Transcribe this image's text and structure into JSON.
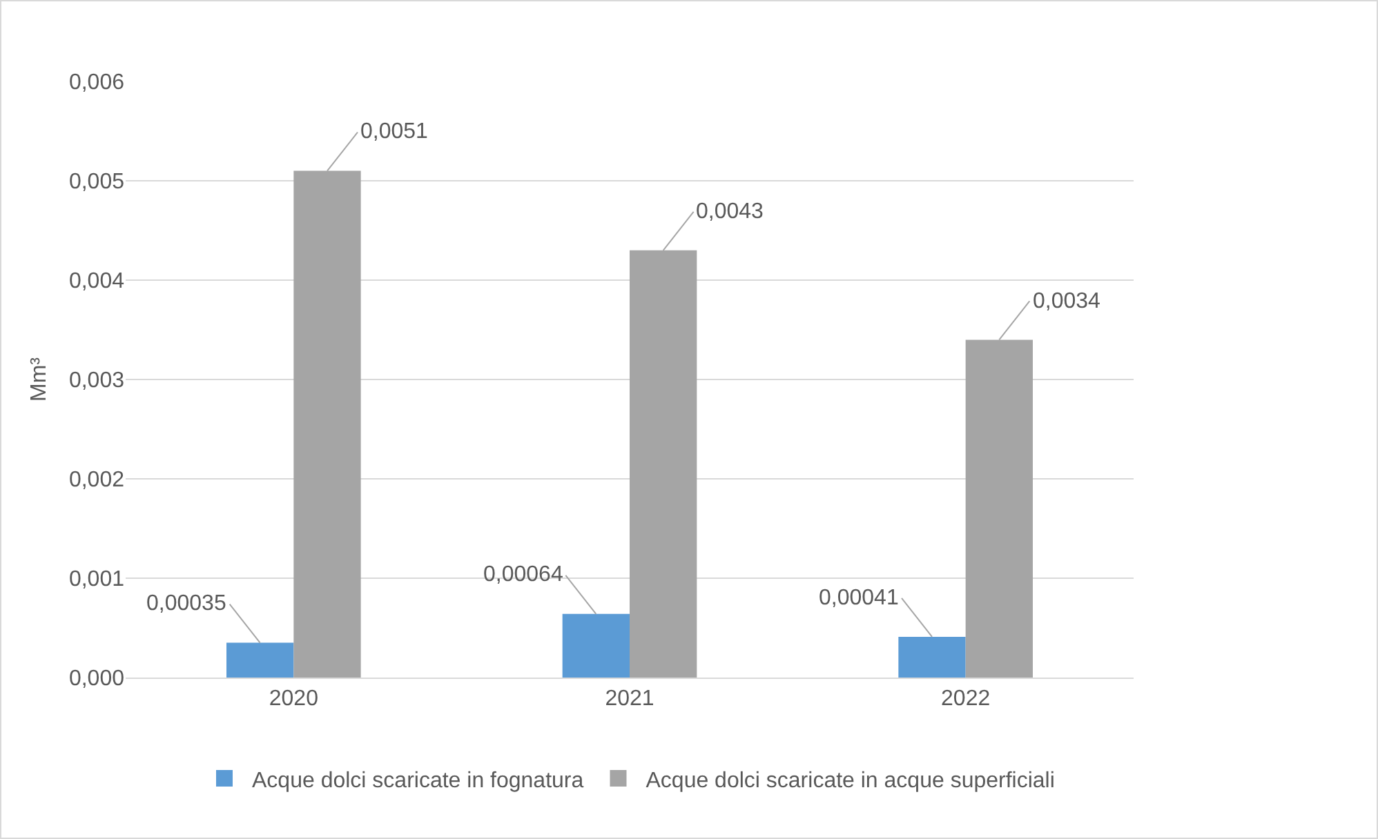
{
  "chart_data": {
    "type": "bar",
    "ylabel": "Mm³",
    "categories": [
      "2020",
      "2021",
      "2022"
    ],
    "series": [
      {
        "name": "Acque dolci scaricate in fognatura",
        "color": "#5b9bd5",
        "values": [
          0.00035,
          0.00064,
          0.00041
        ],
        "value_labels": [
          "0,00035",
          "0,00064",
          "0,00041"
        ]
      },
      {
        "name": "Acque dolci scaricate in acque superficiali",
        "color": "#a5a5a5",
        "values": [
          0.0051,
          0.0043,
          0.0034
        ],
        "value_labels": [
          "0,0051",
          "0,0043",
          "0,0034"
        ]
      }
    ],
    "ylim": [
      0,
      0.006
    ],
    "yticks": [
      {
        "value": 0,
        "label": "0,000"
      },
      {
        "value": 0.001,
        "label": "0,001"
      },
      {
        "value": 0.002,
        "label": "0,002"
      },
      {
        "value": 0.003,
        "label": "0,003"
      },
      {
        "value": 0.004,
        "label": "0,004"
      },
      {
        "value": 0.005,
        "label": "0,005"
      },
      {
        "value": 0.006,
        "label": "0,006"
      }
    ],
    "grid": "y",
    "legend": "bottom"
  }
}
